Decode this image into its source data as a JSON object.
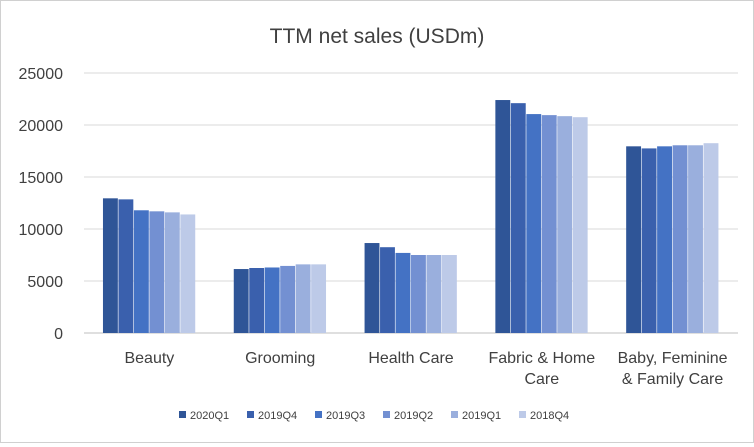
{
  "chart_data": {
    "type": "bar",
    "title": "TTM net sales (USDm)",
    "xlabel": "",
    "ylabel": "",
    "ylim": [
      0,
      25000
    ],
    "yticks": [
      0,
      5000,
      10000,
      15000,
      20000,
      25000
    ],
    "grid": true,
    "legend_position": "bottom",
    "categories": [
      [
        "Beauty"
      ],
      [
        "Grooming"
      ],
      [
        "Health Care"
      ],
      [
        "Fabric & Home",
        "Care"
      ],
      [
        "Baby, Feminine",
        "& Family Care"
      ]
    ],
    "series": [
      {
        "name": "2020Q1",
        "color": "#2f5597",
        "values": [
          12950,
          6150,
          8650,
          22400,
          17950
        ]
      },
      {
        "name": "2019Q4",
        "color": "#3a60ad",
        "values": [
          12850,
          6250,
          8250,
          22100,
          17750
        ]
      },
      {
        "name": "2019Q3",
        "color": "#4472c4",
        "values": [
          11800,
          6300,
          7700,
          21050,
          17950
        ]
      },
      {
        "name": "2019Q2",
        "color": "#7390d2",
        "values": [
          11700,
          6450,
          7500,
          20950,
          18050
        ]
      },
      {
        "name": "2019Q1",
        "color": "#9aafdd",
        "values": [
          11600,
          6600,
          7500,
          20850,
          18050
        ]
      },
      {
        "name": "2018Q4",
        "color": "#bdcae8",
        "values": [
          11400,
          6600,
          7500,
          20750,
          18250
        ]
      }
    ]
  }
}
